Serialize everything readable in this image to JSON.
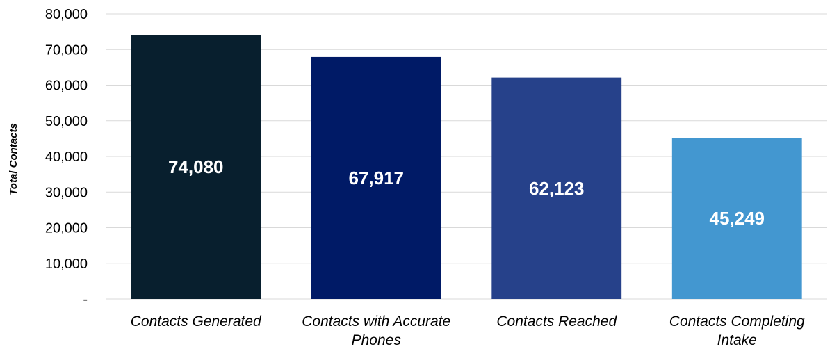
{
  "chart_data": {
    "type": "bar",
    "title": "",
    "xlabel": "",
    "ylabel": "Total Contacts",
    "ylim": [
      0,
      80000
    ],
    "yticks": [
      {
        "value": 0,
        "label": "-"
      },
      {
        "value": 10000,
        "label": "10,000"
      },
      {
        "value": 20000,
        "label": "20,000"
      },
      {
        "value": 30000,
        "label": "30,000"
      },
      {
        "value": 40000,
        "label": "40,000"
      },
      {
        "value": 50000,
        "label": "50,000"
      },
      {
        "value": 60000,
        "label": "60,000"
      },
      {
        "value": 70000,
        "label": "70,000"
      },
      {
        "value": 80000,
        "label": "80,000"
      }
    ],
    "grid": true,
    "legend": "none",
    "categories": [
      [
        "Contacts Generated"
      ],
      [
        "Contacts with Accurate",
        "Phones"
      ],
      [
        "Contacts Reached"
      ],
      [
        "Contacts Completing",
        "Intake"
      ]
    ],
    "values": [
      74080,
      67917,
      62123,
      45249
    ],
    "data_labels": [
      "74,080",
      "67,917",
      "62,123",
      "45,249"
    ],
    "colors": [
      "#081f2e",
      "#001a66",
      "#26418a",
      "#4397d0"
    ]
  }
}
